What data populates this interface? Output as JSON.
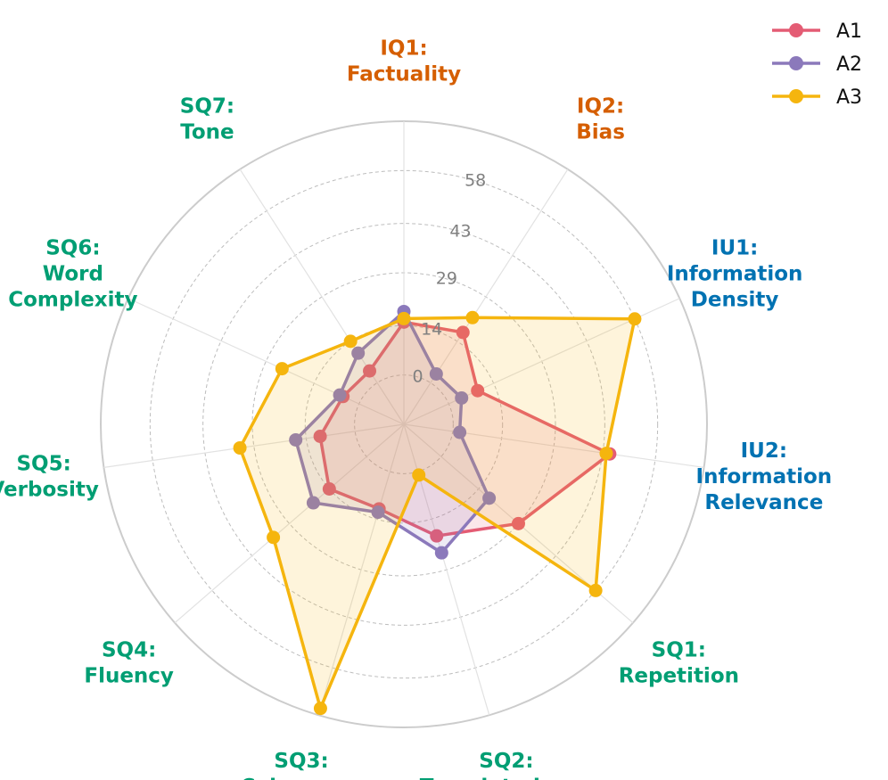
{
  "chart_data": {
    "type": "radar",
    "title": "",
    "axes": [
      {
        "label_lines": [
          "IQ1:",
          "Factuality"
        ],
        "group": "IQ"
      },
      {
        "label_lines": [
          "IQ2:",
          "Bias"
        ],
        "group": "IQ"
      },
      {
        "label_lines": [
          "IU1:",
          "Information",
          "Density"
        ],
        "group": "IU"
      },
      {
        "label_lines": [
          "IU2:",
          "Information",
          "Relevance"
        ],
        "group": "IU"
      },
      {
        "label_lines": [
          "SQ1:",
          "Repetition"
        ],
        "group": "SQ"
      },
      {
        "label_lines": [
          "SQ2:",
          "Templatedness"
        ],
        "group": "SQ"
      },
      {
        "label_lines": [
          "SQ3:",
          "Coherence"
        ],
        "group": "SQ"
      },
      {
        "label_lines": [
          "SQ4:",
          "Fluency"
        ],
        "group": "SQ"
      },
      {
        "label_lines": [
          "SQ5:",
          "Verbosity"
        ],
        "group": "SQ"
      },
      {
        "label_lines": [
          "SQ6:",
          "Word",
          "Complexity"
        ],
        "group": "SQ"
      },
      {
        "label_lines": [
          "SQ7:",
          "Tone"
        ],
        "group": "SQ"
      }
    ],
    "group_colors": {
      "IQ": "#d55e00",
      "IU": "#0072b2",
      "SQ": "#009e73"
    },
    "r_min": -14,
    "r_max": 72,
    "ticks": [
      0,
      14,
      29,
      43,
      58
    ],
    "tick_labels": [
      "0",
      "14",
      "29",
      "43",
      "58"
    ],
    "series": [
      {
        "name": "A1",
        "color": "#e45c74",
        "values": [
          15,
          17,
          9,
          45,
          29,
          19,
          11,
          14,
          10,
          5,
          4
        ],
        "fill_opacity": 0.15
      },
      {
        "name": "A2",
        "color": "#8b79bb",
        "values": [
          18,
          3,
          4,
          2,
          18,
          24,
          12,
          20,
          17,
          6,
          10
        ],
        "fill_opacity": 0.15
      },
      {
        "name": "A3",
        "color": "#f5b50e",
        "values": [
          16,
          22,
          58,
          44,
          58,
          1,
          70,
          35,
          33,
          24,
          14
        ],
        "fill_opacity": 0.15
      }
    ],
    "legend": {
      "position": "top-right",
      "entries": [
        "A1",
        "A2",
        "A3"
      ]
    }
  }
}
